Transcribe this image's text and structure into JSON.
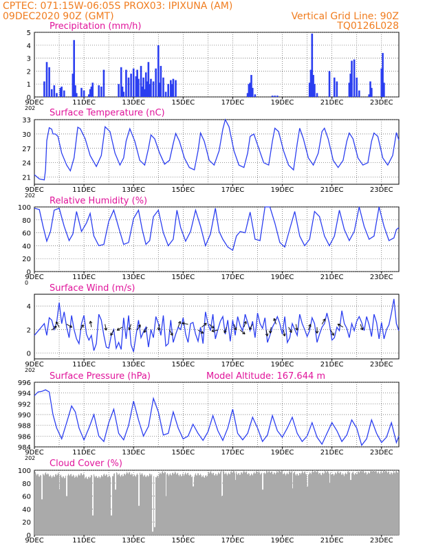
{
  "header": {
    "line1": "CPTEC:    071:15W-06:05S   PROX03: IPIXUNA (AM)",
    "line2_left": "09DEC2020 90Z (GMT)",
    "line2_right": "Vertical Grid Line: 90Z",
    "line3_right": "TQ0126L028"
  },
  "colors": {
    "header": "#f07c1e",
    "title": "#e0139a",
    "series": "#2b3ef0",
    "cloud": "#aaaaaa",
    "axis": "#000000"
  },
  "chart_data": [
    {
      "type": "bar",
      "title": "Precipitation (mm/h)",
      "ylim": [
        0,
        5
      ],
      "yticks": [
        "0",
        "1",
        "2",
        "3",
        "4",
        "5"
      ],
      "x_tick_labels": [
        "9DEC",
        "11DEC",
        "13DEC",
        "15DEC",
        "17DEC",
        "19DEC",
        "21DEC",
        "23DEC"
      ],
      "x_cut_label": "202",
      "grid": "dotted",
      "x_days_since_start": [
        0.4,
        0.5,
        0.6,
        0.7,
        0.8,
        0.9,
        1.05,
        1.1,
        1.2,
        1.55,
        1.6,
        1.65,
        1.7,
        1.9,
        2.0,
        2.2,
        2.25,
        2.3,
        2.35,
        2.6,
        2.7,
        2.8,
        3.4,
        3.5,
        3.55,
        3.6,
        3.7,
        3.8,
        3.9,
        4.0,
        4.1,
        4.15,
        4.2,
        4.3,
        4.35,
        4.4,
        4.45,
        4.5,
        4.55,
        4.6,
        4.65,
        4.7,
        4.8,
        4.9,
        5.0,
        5.05,
        5.1,
        5.2,
        5.3,
        5.4,
        5.5,
        5.55,
        5.6,
        5.7,
        8.6,
        8.65,
        8.7,
        8.75,
        8.8,
        8.9,
        9.6,
        9.7,
        9.8,
        11.1,
        11.15,
        11.2,
        11.25,
        11.3,
        11.4,
        11.9,
        12.1,
        12.2,
        12.7,
        12.75,
        12.8,
        12.9,
        13.0,
        13.1,
        13.5,
        13.55,
        13.6,
        14.0,
        14.05,
        14.1
      ],
      "values": [
        1.2,
        2.7,
        2.3,
        0.6,
        0.9,
        0.3,
        0.7,
        0.8,
        0.5,
        1.8,
        4.4,
        0.9,
        0.3,
        0.7,
        0.5,
        0.2,
        0.6,
        0.8,
        1.1,
        0.9,
        0.8,
        2.1,
        1.0,
        2.3,
        0.8,
        0.4,
        2.1,
        1.5,
        1.8,
        2.2,
        1.6,
        2.1,
        1.4,
        2.4,
        0.8,
        1.5,
        0.6,
        1.9,
        1.2,
        2.7,
        1.0,
        1.4,
        1.2,
        2.2,
        4.0,
        1.1,
        2.4,
        1.5,
        0.4,
        1.0,
        1.3,
        1.0,
        1.4,
        1.3,
        0.3,
        1.0,
        1.1,
        1.7,
        0.7,
        0.2,
        0.1,
        0.1,
        0.1,
        1.1,
        2.1,
        4.9,
        1.7,
        1.0,
        0.3,
        2.0,
        1.5,
        1.2,
        1.1,
        1.8,
        2.8,
        2.9,
        1.5,
        0.5,
        0.2,
        1.2,
        0.7,
        2.2,
        3.4,
        1.1
      ]
    },
    {
      "type": "line",
      "title": "Surface Temperature (nC)",
      "ylim": [
        19.5,
        33
      ],
      "yticks": [
        "21",
        "24",
        "27",
        "30",
        "33"
      ],
      "x_tick_labels": [
        "9DEC",
        "11DEC",
        "13DEC",
        "15DEC",
        "17DEC",
        "19DEC",
        "21DEC",
        "23DEC"
      ],
      "x_cut_label": "202",
      "grid": "dotted",
      "x_days_since_start": [
        0,
        0.2,
        0.4,
        0.45,
        0.5,
        0.6,
        0.7,
        0.75,
        0.85,
        0.95,
        1.1,
        1.3,
        1.45,
        1.6,
        1.75,
        1.85,
        2.05,
        2.25,
        2.5,
        2.7,
        2.85,
        3.05,
        3.25,
        3.45,
        3.6,
        3.7,
        3.85,
        4.05,
        4.25,
        4.45,
        4.6,
        4.7,
        4.85,
        5.05,
        5.25,
        5.45,
        5.6,
        5.7,
        5.85,
        6.05,
        6.25,
        6.45,
        6.6,
        6.7,
        6.85,
        7.05,
        7.25,
        7.45,
        7.6,
        7.7,
        7.85,
        8.05,
        8.25,
        8.45,
        8.6,
        8.7,
        8.85,
        9.05,
        9.25,
        9.45,
        9.6,
        9.7,
        9.85,
        10.05,
        10.25,
        10.45,
        10.6,
        10.7,
        10.85,
        11.05,
        11.25,
        11.45,
        11.6,
        11.7,
        11.85,
        12.05,
        12.25,
        12.45,
        12.6,
        12.7,
        12.85,
        13.05,
        13.25,
        13.45,
        13.6,
        13.7,
        13.85,
        14.05,
        14.25,
        14.45,
        14.6,
        14.65,
        14.7
      ],
      "values": [
        21.5,
        20.6,
        20.4,
        22.5,
        28.6,
        31.3,
        31.0,
        30.0,
        30.0,
        29.5,
        26.0,
        23.5,
        22.3,
        25.0,
        31.4,
        31.1,
        29.0,
        25.5,
        23.2,
        25.5,
        31.5,
        30.5,
        26.0,
        23.5,
        25.0,
        28.5,
        31.1,
        28.5,
        24.5,
        23.5,
        27.0,
        29.8,
        29.0,
        26.0,
        23.7,
        24.5,
        28.0,
        30.1,
        28.5,
        25.0,
        23.0,
        22.5,
        26.5,
        30.2,
        28.5,
        24.5,
        23.5,
        26.5,
        31.0,
        33.0,
        31.5,
        26.5,
        23.5,
        23.0,
        26.0,
        29.5,
        30.0,
        27.0,
        24.0,
        23.5,
        28.5,
        31.2,
        30.5,
        26.5,
        23.5,
        22.5,
        28.0,
        31.2,
        29.0,
        25.0,
        23.5,
        26.0,
        30.5,
        31.2,
        29.0,
        24.5,
        23.0,
        24.5,
        28.5,
        30.2,
        29.0,
        25.0,
        23.5,
        24.0,
        28.5,
        30.2,
        29.5,
        25.0,
        23.5,
        25.5,
        30.3,
        29.5,
        28.7
      ]
    },
    {
      "type": "line",
      "title": "Relative Humidity (%)",
      "ylim": [
        0,
        100
      ],
      "yticks": [
        "0",
        "20",
        "40",
        "60",
        "80",
        "100"
      ],
      "x_tick_labels": [
        "9DEC",
        "11DEC",
        "13DEC",
        "15DEC",
        "17DEC",
        "19DEC",
        "21DEC",
        "23DEC"
      ],
      "x_cut_label": "0",
      "grid": "dotted",
      "x_days_since_start": [
        0,
        0.2,
        0.35,
        0.5,
        0.65,
        0.8,
        1.0,
        1.2,
        1.4,
        1.55,
        1.7,
        1.9,
        2.1,
        2.25,
        2.4,
        2.6,
        2.8,
        3.0,
        3.2,
        3.4,
        3.6,
        3.8,
        4.0,
        4.2,
        4.35,
        4.5,
        4.65,
        4.8,
        5.0,
        5.2,
        5.4,
        5.6,
        5.75,
        5.9,
        6.1,
        6.3,
        6.5,
        6.7,
        6.9,
        7.1,
        7.3,
        7.45,
        7.6,
        7.8,
        8.0,
        8.15,
        8.3,
        8.5,
        8.7,
        8.9,
        9.1,
        9.3,
        9.5,
        9.7,
        9.9,
        10.1,
        10.3,
        10.5,
        10.7,
        10.9,
        11.1,
        11.3,
        11.5,
        11.7,
        11.9,
        12.1,
        12.3,
        12.5,
        12.7,
        12.9,
        13.1,
        13.3,
        13.5,
        13.7,
        13.9,
        14.1,
        14.3,
        14.5,
        14.6,
        14.7
      ],
      "values": [
        98,
        96,
        70,
        47,
        62,
        95,
        98,
        70,
        48,
        58,
        93,
        62,
        75,
        90,
        55,
        40,
        42,
        78,
        95,
        68,
        42,
        45,
        82,
        95,
        65,
        42,
        48,
        85,
        95,
        60,
        40,
        50,
        95,
        68,
        47,
        62,
        95,
        70,
        40,
        58,
        98,
        62,
        50,
        38,
        33,
        55,
        62,
        60,
        92,
        50,
        48,
        100,
        100,
        75,
        45,
        38,
        66,
        93,
        55,
        40,
        50,
        93,
        85,
        55,
        40,
        55,
        95,
        65,
        48,
        62,
        100,
        70,
        50,
        55,
        100,
        70,
        48,
        52,
        65,
        68
      ]
    },
    {
      "type": "line",
      "title": "Surface Wind (m/s)",
      "ylim": [
        -0.5,
        5
      ],
      "yticks": [
        "0",
        "2",
        "4"
      ],
      "x_tick_labels": [
        "9DEC",
        "11DEC",
        "13DEC",
        "15DEC",
        "17DEC",
        "19DEC",
        "21DEC",
        "23DEC"
      ],
      "x_cut_label": "202",
      "grid": "dotted",
      "x_days_since_start": [
        0,
        0.2,
        0.4,
        0.5,
        0.6,
        0.7,
        0.8,
        0.9,
        1.0,
        1.1,
        1.2,
        1.3,
        1.4,
        1.5,
        1.6,
        1.7,
        1.8,
        1.9,
        2.0,
        2.1,
        2.2,
        2.3,
        2.4,
        2.5,
        2.6,
        2.7,
        2.8,
        2.9,
        3.0,
        3.1,
        3.2,
        3.3,
        3.4,
        3.5,
        3.6,
        3.7,
        3.8,
        3.9,
        4.0,
        4.1,
        4.2,
        4.3,
        4.4,
        4.5,
        4.6,
        4.7,
        4.8,
        4.9,
        5.0,
        5.1,
        5.2,
        5.3,
        5.4,
        5.5,
        5.6,
        5.7,
        5.8,
        5.9,
        6.0,
        6.1,
        6.2,
        6.3,
        6.4,
        6.5,
        6.6,
        6.7,
        6.8,
        6.9,
        7.0,
        7.1,
        7.2,
        7.3,
        7.4,
        7.5,
        7.6,
        7.7,
        7.8,
        7.9,
        8.0,
        8.1,
        8.2,
        8.3,
        8.4,
        8.5,
        8.6,
        8.7,
        8.8,
        8.9,
        9.0,
        9.1,
        9.2,
        9.3,
        9.4,
        9.5,
        9.6,
        9.7,
        9.8,
        9.9,
        10.0,
        10.1,
        10.2,
        10.3,
        10.4,
        10.5,
        10.6,
        10.7,
        10.8,
        10.9,
        11.0,
        11.1,
        11.2,
        11.3,
        11.4,
        11.5,
        11.6,
        11.7,
        11.8,
        11.9,
        12.0,
        12.1,
        12.2,
        12.3,
        12.4,
        12.5,
        12.6,
        12.7,
        12.8,
        12.9,
        13.0,
        13.1,
        13.2,
        13.3,
        13.4,
        13.5,
        13.6,
        13.7,
        13.8,
        13.9,
        14.0,
        14.1,
        14.2,
        14.3,
        14.4,
        14.5,
        14.6,
        14.7
      ],
      "values": [
        1.5,
        2.0,
        2.5,
        1.5,
        3.0,
        2.8,
        2.0,
        2.6,
        4.3,
        2.5,
        3.5,
        2.2,
        1.3,
        3.2,
        2.0,
        1.2,
        0.8,
        2.5,
        3.2,
        1.6,
        1.1,
        1.5,
        0.2,
        0.8,
        3.3,
        2.8,
        1.5,
        0.5,
        0.4,
        1.5,
        2.0,
        0.4,
        0.9,
        0.3,
        3.0,
        1.2,
        3.2,
        0.7,
        0.1,
        1.5,
        2.8,
        1.3,
        1.8,
        2.2,
        0.5,
        2.0,
        1.3,
        3.1,
        2.5,
        1.5,
        3.2,
        0.6,
        0.8,
        2.8,
        0.9,
        1.6,
        2.2,
        2.0,
        3.0,
        1.6,
        0.9,
        2.5,
        2.6,
        1.6,
        1.0,
        2.2,
        0.8,
        3.5,
        2.5,
        1.9,
        3.3,
        1.2,
        2.0,
        2.7,
        3.1,
        1.6,
        2.8,
        1.0,
        2.8,
        1.5,
        3.1,
        2.3,
        1.9,
        3.3,
        2.6,
        1.9,
        2.7,
        1.3,
        3.4,
        2.5,
        2.1,
        3.0,
        0.9,
        1.5,
        2.2,
        2.6,
        3.1,
        2.5,
        1.6,
        3.1,
        0.9,
        1.3,
        2.5,
        2.0,
        1.5,
        3.3,
        2.5,
        2.0,
        1.4,
        1.9,
        3.0,
        2.5,
        0.9,
        1.6,
        2.2,
        2.5,
        3.4,
        2.5,
        1.1,
        1.3,
        2.2,
        1.9,
        3.6,
        2.5,
        2.1,
        1.3,
        2.5,
        1.9,
        2.7,
        3.1,
        2.6,
        1.9,
        3.1,
        2.4,
        1.4,
        3.3,
        2.6,
        1.2,
        2.6,
        1.2,
        2.0,
        2.4,
        3.4,
        4.6,
        2.5,
        1.9,
        1.5,
        1.2,
        0.9,
        1.8
      ],
      "wind_arrow_angles_deg": [
        40,
        120,
        -30,
        60,
        100,
        -80,
        -120,
        -150,
        -110,
        60,
        -120,
        -100,
        -60,
        70,
        170,
        -30,
        40,
        -40,
        -170,
        -110,
        -70,
        -40,
        70,
        -120,
        -80,
        -100,
        110,
        -80,
        -60,
        -80,
        70,
        -90,
        60,
        -60,
        150,
        -70
      ],
      "wind_arrow_days": [
        0.7,
        1.0,
        1.3,
        1.85,
        2.3,
        2.85,
        3.2,
        3.55,
        3.9,
        4.15,
        4.55,
        5.05,
        5.45,
        5.8,
        6.2,
        6.6,
        6.75,
        7.05,
        7.4,
        7.75,
        8.05,
        8.3,
        8.45,
        8.8,
        9.35,
        9.55,
        9.75,
        10.05,
        10.25,
        10.55,
        11.05,
        11.4,
        11.6,
        11.95,
        12.45,
        13.15
      ]
    },
    {
      "type": "line",
      "title": "Surface Pressure (hPa)",
      "annotation": "Model Altitude: 167.644 m",
      "ylim": [
        984,
        996
      ],
      "yticks": [
        "984",
        "986",
        "988",
        "990",
        "992",
        "994",
        "996"
      ],
      "x_tick_labels": [
        "9DEC",
        "11DEC",
        "13DEC",
        "15DEC",
        "17DEC",
        "19DEC",
        "21DEC",
        "23DEC"
      ],
      "x_cut_label": "202",
      "grid": "dotted",
      "x_days_since_start": [
        0,
        0.15,
        0.3,
        0.45,
        0.6,
        0.75,
        0.9,
        1.1,
        1.3,
        1.5,
        1.65,
        1.8,
        2.0,
        2.2,
        2.4,
        2.6,
        2.8,
        3.0,
        3.2,
        3.4,
        3.6,
        3.8,
        4.0,
        4.2,
        4.4,
        4.6,
        4.8,
        5.0,
        5.2,
        5.4,
        5.6,
        5.8,
        6.0,
        6.2,
        6.4,
        6.6,
        6.8,
        7.0,
        7.2,
        7.4,
        7.6,
        7.8,
        8.0,
        8.2,
        8.4,
        8.6,
        8.8,
        9.0,
        9.2,
        9.4,
        9.6,
        9.8,
        10.0,
        10.2,
        10.4,
        10.6,
        10.8,
        11.0,
        11.2,
        11.4,
        11.6,
        11.8,
        12.0,
        12.2,
        12.4,
        12.6,
        12.8,
        13.0,
        13.2,
        13.4,
        13.6,
        13.8,
        14.0,
        14.2,
        14.4,
        14.6,
        14.7
      ],
      "values": [
        993.5,
        994.2,
        994.3,
        994.6,
        994.2,
        990.0,
        987.5,
        985.5,
        988.5,
        991.6,
        990.5,
        987.5,
        985.3,
        987.5,
        990.0,
        986.0,
        985.0,
        988.5,
        991.0,
        986.5,
        985.3,
        988.0,
        992.5,
        989.0,
        986.0,
        987.8,
        993.0,
        990.5,
        986.2,
        986.5,
        990.5,
        987.5,
        985.5,
        986.0,
        988.2,
        986.5,
        985.2,
        986.8,
        989.8,
        987.0,
        985.2,
        987.5,
        991.0,
        986.5,
        985.3,
        986.5,
        989.5,
        987.5,
        985.0,
        986.2,
        989.8,
        987.0,
        985.8,
        987.5,
        989.5,
        986.5,
        985.0,
        986.0,
        988.5,
        985.8,
        984.5,
        986.5,
        988.5,
        987.0,
        985.0,
        986.2,
        989.0,
        987.5,
        984.3,
        985.5,
        989.0,
        986.5,
        984.8,
        985.8,
        988.5,
        984.8,
        986.0
      ]
    },
    {
      "type": "bar",
      "title": "Cloud Cover (%)",
      "ylim": [
        0,
        100
      ],
      "yticks": [
        "0",
        "20",
        "40",
        "60",
        "80",
        "100"
      ],
      "x_tick_labels": [
        "9DEC",
        "11DEC",
        "13DEC",
        "15DEC",
        "17DEC",
        "19DEC",
        "21DEC",
        "23DEC"
      ],
      "grid": "dotted",
      "baseline_values_by_day": [
        93,
        92,
        91,
        92,
        90,
        91,
        93,
        94,
        93,
        92,
        95,
        94,
        93,
        92,
        95,
        96,
        96,
        95,
        96,
        97,
        96,
        95,
        97,
        96,
        95,
        96,
        97,
        98,
        97,
        96
      ],
      "dips_days": [
        0.3,
        1.0,
        1.3,
        2.35,
        3.1,
        3.25,
        4.2,
        4.75,
        4.85,
        5.3,
        6.4,
        7.55,
        8.1,
        9.2,
        10.4,
        11.0,
        11.9,
        12.75
      ],
      "dips_values": [
        55,
        70,
        60,
        30,
        30,
        70,
        45,
        5,
        12,
        60,
        75,
        60,
        85,
        70,
        72,
        75,
        80,
        85
      ]
    }
  ]
}
